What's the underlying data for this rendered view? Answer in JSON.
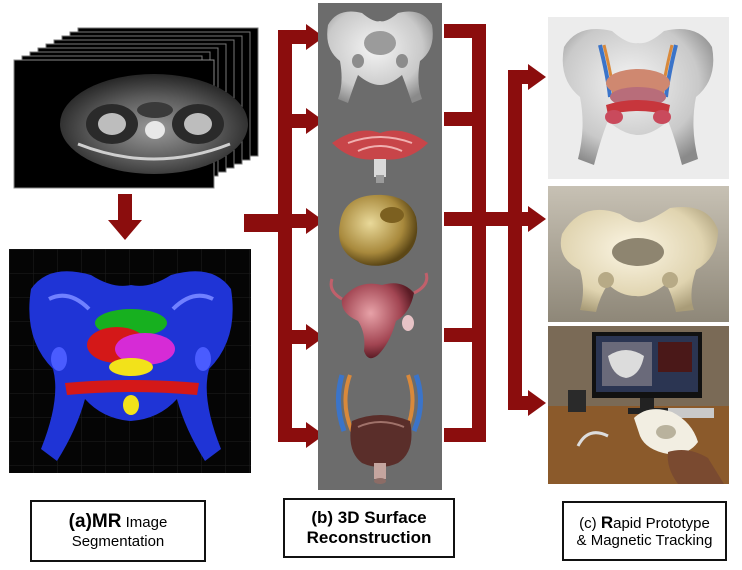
{
  "diagram": {
    "title": "",
    "colors": {
      "arrow": "#8b0d0d",
      "panel_gray": "#6c6c6c",
      "seg_blue": "#1f34d6",
      "seg_green": "#17b01f",
      "seg_red": "#d41818",
      "seg_magenta": "#d62bd6",
      "seg_yellow": "#f2e21a"
    },
    "stages": [
      {
        "id": "a",
        "prefix": "(a)",
        "line1": "MR",
        "line1_rest": " Image",
        "line2": "Segmentation"
      },
      {
        "id": "b",
        "line1": "(b) 3D Surface",
        "line2": "Reconstruction"
      },
      {
        "id": "c",
        "prefix": "(c) ",
        "line1_big": "R",
        "line1_rest": "apid Prototype",
        "line2": "& Magnetic Tracking"
      }
    ],
    "images": {
      "mr_stack": "mr-slice-stack-image",
      "segmentation": "color-segmentation-image",
      "surface_models": [
        "pelvis-bone-model",
        "pelvic-floor-muscle-model",
        "bladder-model",
        "uterus-model",
        "vessels-bladder-model"
      ],
      "outputs": [
        "virtual-pelvis-render",
        "printed-pelvis-prototype",
        "tracking-setup-photo"
      ]
    }
  }
}
